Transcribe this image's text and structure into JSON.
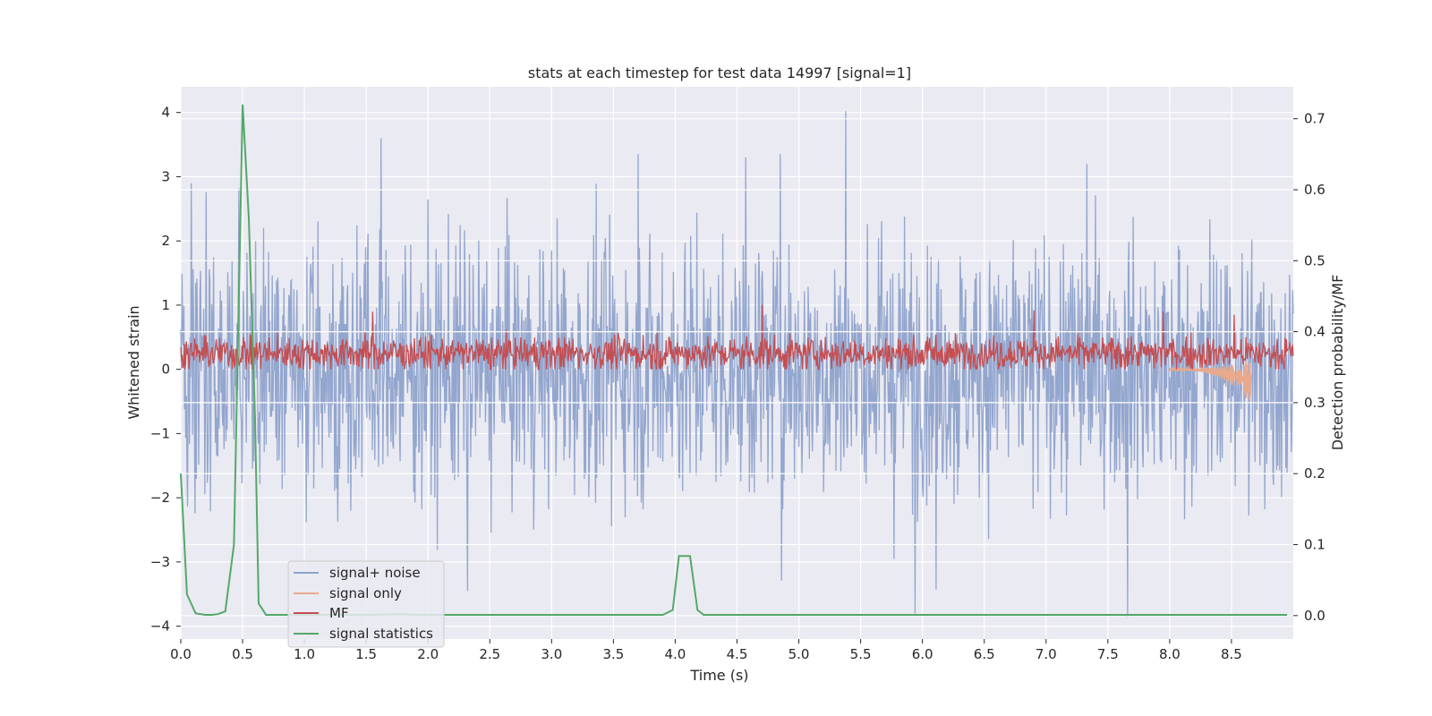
{
  "chart_data": {
    "type": "line",
    "title": "stats at each timestep for test data 14997 [signal=1]",
    "xlabel": "Time (s)",
    "ylabel_left": "Whitened strain",
    "ylabel_right": "Detection probability/MF",
    "xlim": [
      0.0,
      9.0
    ],
    "ylim_left": [
      -4.2,
      4.4
    ],
    "ylim_right": [
      -0.033,
      0.745
    ],
    "x_ticks": [
      "0.0",
      "0.5",
      "1.0",
      "1.5",
      "2.0",
      "2.5",
      "3.0",
      "3.5",
      "4.0",
      "4.5",
      "5.0",
      "5.5",
      "6.0",
      "6.5",
      "7.0",
      "7.5",
      "8.0",
      "8.5"
    ],
    "x_tick_values": [
      0.0,
      0.5,
      1.0,
      1.5,
      2.0,
      2.5,
      3.0,
      3.5,
      4.0,
      4.5,
      5.0,
      5.5,
      6.0,
      6.5,
      7.0,
      7.5,
      8.0,
      8.5
    ],
    "y_left_ticks": [
      "4",
      "3",
      "2",
      "1",
      "0",
      "−1",
      "−2",
      "−3",
      "−4"
    ],
    "y_left_tick_values": [
      4,
      3,
      2,
      1,
      0,
      -1,
      -2,
      -3,
      -4
    ],
    "y_right_ticks": [
      "0.7",
      "0.6",
      "0.5",
      "0.4",
      "0.3",
      "0.2",
      "0.1",
      "0.0"
    ],
    "y_right_tick_values": [
      0.7,
      0.6,
      0.5,
      0.4,
      0.3,
      0.2,
      0.1,
      0.0
    ],
    "legend": {
      "placement": "lower-left",
      "entries": [
        {
          "label": "signal+ noise",
          "color": "#8ea2cb"
        },
        {
          "label": "signal only",
          "color": "#e8a98d"
        },
        {
          "label": "MF",
          "color": "#c44e52"
        },
        {
          "label": "signal statistics",
          "color": "#55a868"
        }
      ]
    },
    "series": [
      {
        "name": "signal+ noise",
        "axis": "left",
        "color": "#8ea2cb",
        "description_range": [
          -3.9,
          4.0
        ],
        "notable_peaks": [
          {
            "x": 5.38,
            "y": 4.02
          },
          {
            "x": 1.62,
            "y": 3.6
          },
          {
            "x": 3.7,
            "y": 3.35
          },
          {
            "x": 4.57,
            "y": 3.3
          },
          {
            "x": 4.85,
            "y": 3.35
          },
          {
            "x": 7.33,
            "y": 3.2
          },
          {
            "x": 0.47,
            "y": 2.82
          },
          {
            "x": 7.66,
            "y": -3.85
          },
          {
            "x": 5.94,
            "y": -3.8
          },
          {
            "x": 6.11,
            "y": -3.43
          },
          {
            "x": 2.32,
            "y": -3.45
          },
          {
            "x": 4.86,
            "y": -3.29
          }
        ]
      },
      {
        "name": "signal only",
        "axis": "left",
        "color": "#e8a98d",
        "chirp": {
          "start_x": 8.0,
          "end_x": 8.66,
          "min_y": -0.55,
          "max_y": 0.12
        }
      },
      {
        "name": "MF",
        "axis": "left",
        "color": "#c44e52",
        "typical_range": [
          0.0,
          0.55
        ],
        "notable_peaks": [
          {
            "x": 4.7,
            "y": 1.0
          },
          {
            "x": 1.55,
            "y": 0.9
          },
          {
            "x": 6.9,
            "y": 0.92
          },
          {
            "x": 7.95,
            "y": 0.9
          },
          {
            "x": 8.52,
            "y": 0.85
          }
        ]
      },
      {
        "name": "signal statistics",
        "axis": "right",
        "color": "#55a868",
        "x": [
          0.0,
          0.05,
          0.12,
          0.2,
          0.25,
          0.3,
          0.36,
          0.43,
          0.5,
          0.55,
          0.6,
          0.63,
          0.69,
          0.8,
          1.0,
          1.5,
          1.8,
          1.9,
          2.0,
          3.0,
          3.5,
          3.9,
          3.98,
          4.03,
          4.12,
          4.18,
          4.23,
          4.3,
          5.0,
          6.0,
          7.0,
          8.0,
          8.95
        ],
        "y": [
          0.2,
          0.03,
          0.003,
          0.001,
          0.001,
          0.002,
          0.006,
          0.1,
          0.72,
          0.56,
          0.28,
          0.017,
          0.001,
          0.001,
          0.001,
          0.001,
          0.002,
          0.001,
          0.001,
          0.001,
          0.001,
          0.001,
          0.008,
          0.084,
          0.084,
          0.008,
          0.001,
          0.001,
          0.001,
          0.001,
          0.001,
          0.001,
          0.001
        ]
      }
    ]
  }
}
